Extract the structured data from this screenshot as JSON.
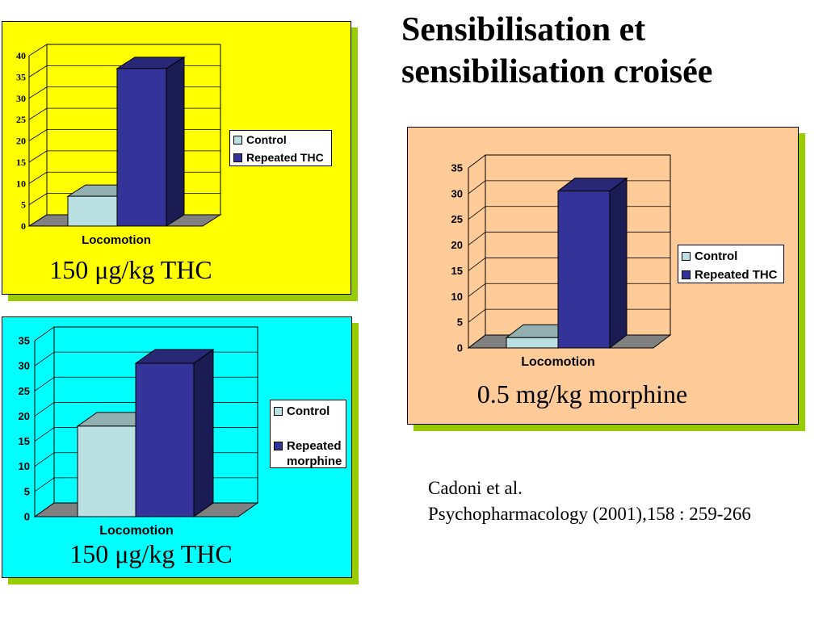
{
  "slide": {
    "title": [
      "Sensibilisation et",
      "sensibilisation croisée"
    ],
    "citation": [
      "Cadoni et al.",
      "Psychopharmacology (2001),158 : 259-266"
    ]
  },
  "panels": [
    {
      "caption": "150 μg/kg THC",
      "background": "#ffff00"
    },
    {
      "caption": "150 μg/kg THC",
      "background": "#00ffff"
    },
    {
      "caption": "0.5 mg/kg morphine",
      "background": "#ffcc99"
    }
  ],
  "colors": {
    "panel_shadow": "#99cc00",
    "control_bar": "#bbe0e3",
    "repeated_bar": "#333399",
    "floor": "#808080"
  },
  "chart_data": [
    {
      "type": "bar",
      "style": "3d-column",
      "categories": [
        "Locomotion"
      ],
      "series": [
        {
          "name": "Control",
          "values": [
            7
          ]
        },
        {
          "name": "Repeated THC",
          "values": [
            37
          ]
        }
      ],
      "ylim": [
        0,
        40
      ],
      "yticks": [
        0,
        5,
        10,
        15,
        20,
        25,
        30,
        35,
        40
      ],
      "grid": true,
      "legend": "right"
    },
    {
      "type": "bar",
      "style": "3d-column",
      "categories": [
        "Locomotion"
      ],
      "series": [
        {
          "name": "Control",
          "values": [
            18
          ]
        },
        {
          "name": "Repeated morphine",
          "values": [
            30.5
          ]
        }
      ],
      "ylim": [
        0,
        35
      ],
      "yticks": [
        0,
        5,
        10,
        15,
        20,
        25,
        30,
        35
      ],
      "grid": true,
      "legend": "right"
    },
    {
      "type": "bar",
      "style": "3d-column",
      "categories": [
        "Locomotion"
      ],
      "series": [
        {
          "name": "Control",
          "values": [
            2
          ]
        },
        {
          "name": "Repeated THC",
          "values": [
            30.5
          ]
        }
      ],
      "ylim": [
        0,
        35
      ],
      "yticks": [
        0,
        5,
        10,
        15,
        20,
        25,
        30,
        35
      ],
      "grid": true,
      "legend": "right"
    }
  ]
}
